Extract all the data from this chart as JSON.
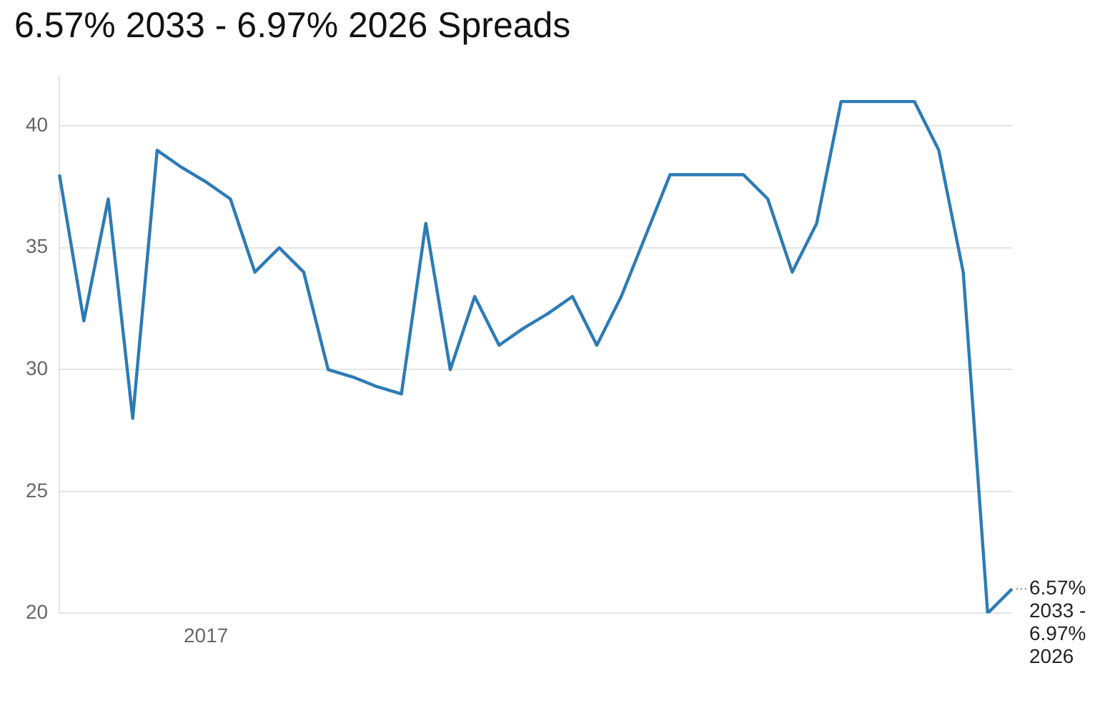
{
  "chart_data": {
    "type": "line",
    "title": "6.57% 2033 - 6.97% 2026 Spreads",
    "categories": [
      null,
      null,
      null,
      null,
      null,
      null,
      "2017",
      null,
      null,
      null,
      null,
      null,
      null,
      null,
      null,
      null,
      null,
      null,
      null,
      null,
      null,
      null,
      null,
      null,
      null,
      null,
      null,
      null,
      null,
      null,
      null,
      null,
      null,
      null,
      null,
      null,
      null,
      null,
      null,
      null
    ],
    "series": [
      {
        "name": "6.57% 2033 - 6.97% 2026",
        "color": "#2c7bb6",
        "values": [
          38,
          32,
          37,
          28,
          39,
          38.3,
          37.7,
          37,
          34,
          35,
          34,
          30,
          29.7,
          29.3,
          29,
          36,
          30,
          33,
          31,
          31.7,
          32.3,
          33,
          31,
          33,
          35.5,
          38,
          38,
          38,
          38,
          37,
          34,
          36,
          41,
          41,
          41,
          41,
          39,
          34,
          20,
          21
        ]
      }
    ],
    "ylim": [
      20,
      42
    ],
    "yticks": [
      20,
      25,
      30,
      35,
      40
    ],
    "grid": "y",
    "legend": false,
    "marker": "none",
    "line_style": "solid"
  }
}
